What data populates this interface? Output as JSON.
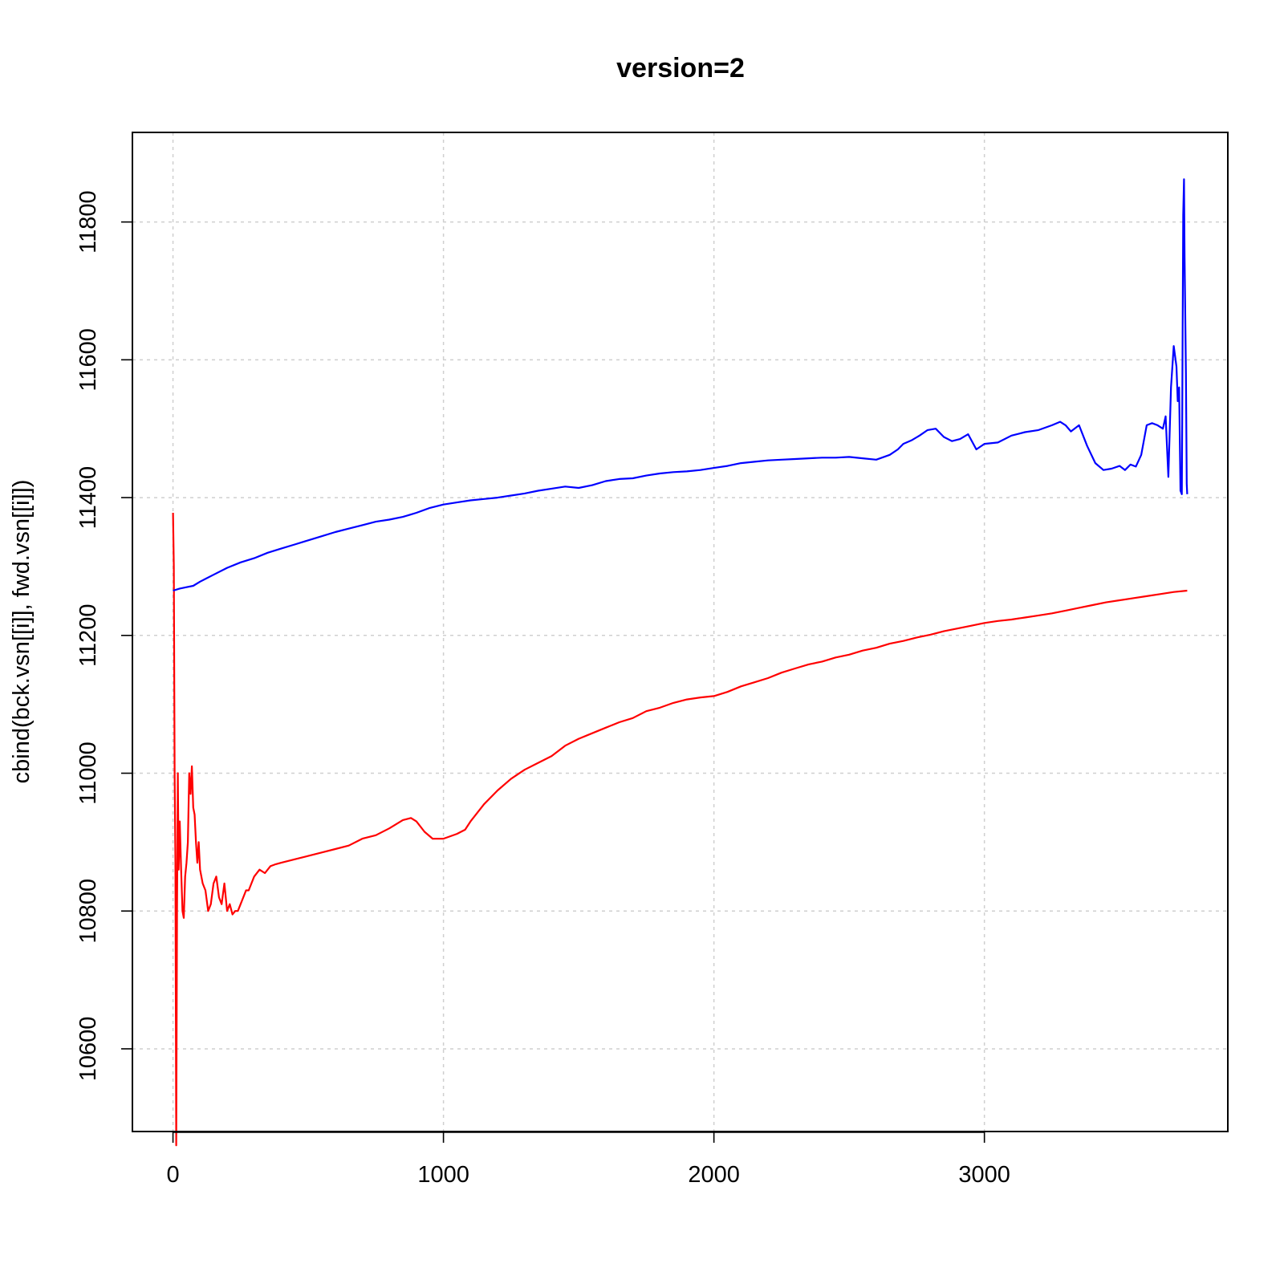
{
  "chart_data": {
    "type": "line",
    "title": "version=2",
    "xlabel": "",
    "ylabel": "cbind(bck.vsn[[i]], fwd.vsn[[i]])",
    "xlim": [
      -150,
      3900
    ],
    "ylim": [
      10480,
      11930
    ],
    "x_ticks": [
      0,
      1000,
      2000,
      3000
    ],
    "y_ticks": [
      10600,
      10800,
      11000,
      11200,
      11400,
      11600,
      11800
    ],
    "grid": true,
    "legend": "none",
    "series": [
      {
        "color": "#ff0000",
        "x": [
          0,
          3,
          6,
          9,
          12,
          15,
          18,
          21,
          25,
          30,
          35,
          40,
          45,
          50,
          55,
          60,
          65,
          70,
          75,
          80,
          85,
          90,
          95,
          100,
          110,
          120,
          130,
          140,
          150,
          160,
          170,
          180,
          190,
          200,
          210,
          220,
          230,
          240,
          250,
          260,
          270,
          280,
          290,
          300,
          320,
          340,
          360,
          380,
          400,
          450,
          500,
          550,
          600,
          650,
          700,
          750,
          800,
          850,
          880,
          900,
          930,
          960,
          1000,
          1050,
          1080,
          1100,
          1150,
          1200,
          1250,
          1300,
          1350,
          1400,
          1450,
          1500,
          1550,
          1600,
          1650,
          1700,
          1750,
          1800,
          1850,
          1900,
          1950,
          2000,
          2050,
          2100,
          2150,
          2200,
          2250,
          2300,
          2350,
          2400,
          2450,
          2500,
          2550,
          2600,
          2650,
          2700,
          2750,
          2800,
          2850,
          2900,
          2950,
          3000,
          3050,
          3100,
          3150,
          3200,
          3250,
          3300,
          3350,
          3400,
          3450,
          3500,
          3550,
          3600,
          3650,
          3700,
          3750
        ],
        "values": [
          11378,
          11300,
          11000,
          10870,
          10460,
          10800,
          11000,
          10860,
          10930,
          10860,
          10800,
          10790,
          10850,
          10870,
          10900,
          11000,
          10970,
          11010,
          10950,
          10940,
          10900,
          10870,
          10900,
          10860,
          10840,
          10830,
          10800,
          10810,
          10840,
          10850,
          10820,
          10810,
          10840,
          10800,
          10810,
          10795,
          10800,
          10800,
          10810,
          10820,
          10830,
          10830,
          10840,
          10850,
          10860,
          10855,
          10865,
          10868,
          10870,
          10875,
          10880,
          10885,
          10890,
          10895,
          10905,
          10910,
          10920,
          10932,
          10935,
          10930,
          10915,
          10905,
          10905,
          10912,
          10918,
          10930,
          10955,
          10975,
          10992,
          11005,
          11015,
          11025,
          11040,
          11050,
          11058,
          11066,
          11074,
          11080,
          11090,
          11095,
          11102,
          11107,
          11110,
          11112,
          11118,
          11126,
          11132,
          11138,
          11146,
          11152,
          11158,
          11162,
          11168,
          11172,
          11178,
          11182,
          11188,
          11192,
          11197,
          11201,
          11206,
          11210,
          11214,
          11218,
          11221,
          11223,
          11226,
          11229,
          11232,
          11236,
          11240,
          11244,
          11248,
          11251,
          11254,
          11257,
          11260,
          11263,
          11265
        ]
      },
      {
        "color": "#0000ff",
        "x": [
          0,
          25,
          50,
          75,
          100,
          150,
          200,
          250,
          300,
          350,
          400,
          450,
          500,
          550,
          600,
          650,
          700,
          750,
          800,
          850,
          900,
          950,
          1000,
          1050,
          1100,
          1150,
          1200,
          1250,
          1300,
          1350,
          1400,
          1450,
          1500,
          1550,
          1600,
          1650,
          1700,
          1750,
          1800,
          1850,
          1900,
          1950,
          2000,
          2050,
          2100,
          2150,
          2200,
          2250,
          2300,
          2350,
          2400,
          2450,
          2500,
          2550,
          2600,
          2650,
          2680,
          2700,
          2730,
          2760,
          2790,
          2820,
          2850,
          2880,
          2910,
          2940,
          2970,
          3000,
          3050,
          3100,
          3150,
          3200,
          3250,
          3280,
          3300,
          3320,
          3350,
          3380,
          3410,
          3440,
          3470,
          3500,
          3520,
          3540,
          3560,
          3580,
          3600,
          3620,
          3640,
          3660,
          3670,
          3680,
          3690,
          3700,
          3710,
          3715,
          3720,
          3725,
          3730,
          3735,
          3738,
          3740,
          3745,
          3748,
          3750
        ],
        "values": [
          11265,
          11268,
          11270,
          11272,
          11278,
          11288,
          11298,
          11306,
          11312,
          11320,
          11326,
          11332,
          11338,
          11344,
          11350,
          11355,
          11360,
          11365,
          11368,
          11372,
          11378,
          11385,
          11390,
          11393,
          11396,
          11398,
          11400,
          11403,
          11406,
          11410,
          11413,
          11416,
          11414,
          11418,
          11424,
          11427,
          11428,
          11432,
          11435,
          11437,
          11438,
          11440,
          11443,
          11446,
          11450,
          11452,
          11454,
          11455,
          11456,
          11457,
          11458,
          11458,
          11459,
          11457,
          11455,
          11462,
          11470,
          11478,
          11483,
          11490,
          11498,
          11500,
          11488,
          11482,
          11485,
          11492,
          11470,
          11478,
          11480,
          11490,
          11495,
          11498,
          11505,
          11510,
          11505,
          11496,
          11505,
          11475,
          11450,
          11440,
          11442,
          11446,
          11440,
          11448,
          11445,
          11462,
          11505,
          11508,
          11505,
          11500,
          11518,
          11430,
          11560,
          11620,
          11590,
          11540,
          11560,
          11410,
          11405,
          11810,
          11862,
          11750,
          11580,
          11420,
          11405
        ]
      }
    ]
  }
}
